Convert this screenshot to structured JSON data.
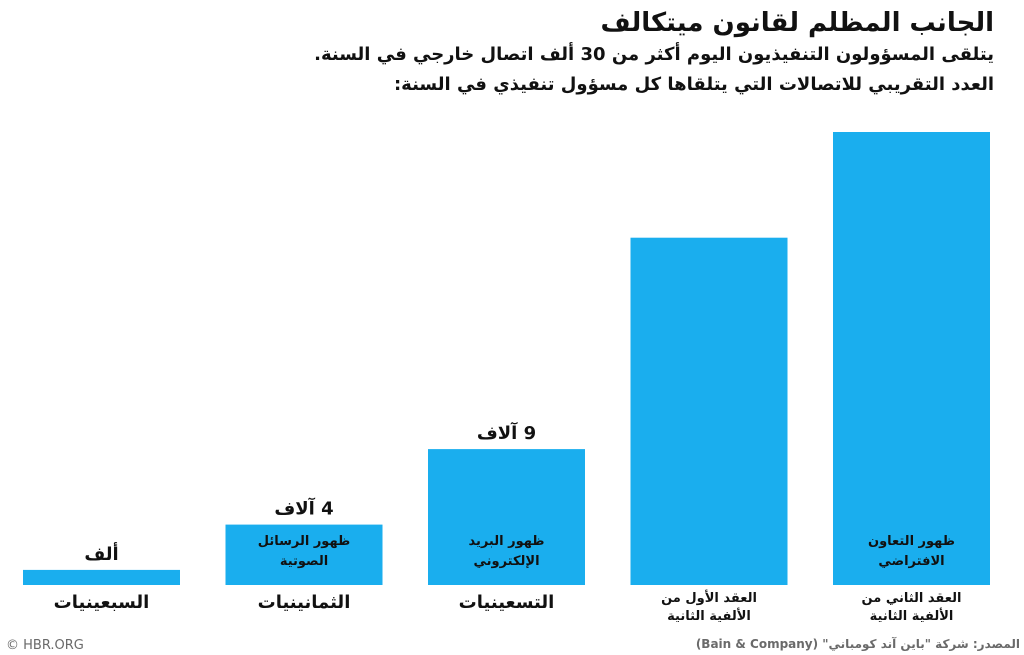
{
  "header": {
    "title": "الجانب المظلم لقانون ميتكالف",
    "subtitle1": "يتلقى المسؤولون التنفيذيون اليوم أكثر من 30 ألف اتصال خارجي في السنة.",
    "subtitle2": "العدد التقريبي للاتصالات التي يتلقاها كل مسؤول تنفيذي في السنة:"
  },
  "footer": {
    "brand": "© HBR.ORG",
    "source": "المصدر: شركة \"باين آند كومباني\" (Bain & Company)"
  },
  "colors": {
    "bar": "#1aaeee",
    "bar_top": "#2fb7f2",
    "text": "#111111",
    "muted": "#6a6a6a"
  },
  "chart_data": {
    "type": "bar",
    "categories": [
      "السبعينيات",
      "الثمانينيات",
      "التسعينيات",
      "العقد الأول من الألفية الثانية",
      "العقد الثاني من الألفية الثانية"
    ],
    "category_lines": [
      [
        "السبعينيات"
      ],
      [
        "الثمانينيات"
      ],
      [
        "التسعينيات"
      ],
      [
        "العقد الأول من",
        "الألفية الثانية"
      ],
      [
        "العقد الثاني من",
        "الألفية الثانية"
      ]
    ],
    "values": [
      1000,
      4000,
      9000,
      23000,
      30000
    ],
    "value_labels": [
      "ألف",
      "4 آلاف",
      "9 آلاف",
      "",
      ""
    ],
    "annotations": [
      [],
      [
        "ظهور الرسائل",
        "الصوتية"
      ],
      [
        "ظهور البريد",
        "الإلكتروني"
      ],
      [],
      [
        "ظهور التعاون",
        "الافتراضي"
      ]
    ],
    "ylim": [
      0,
      30000
    ],
    "grid": false
  }
}
